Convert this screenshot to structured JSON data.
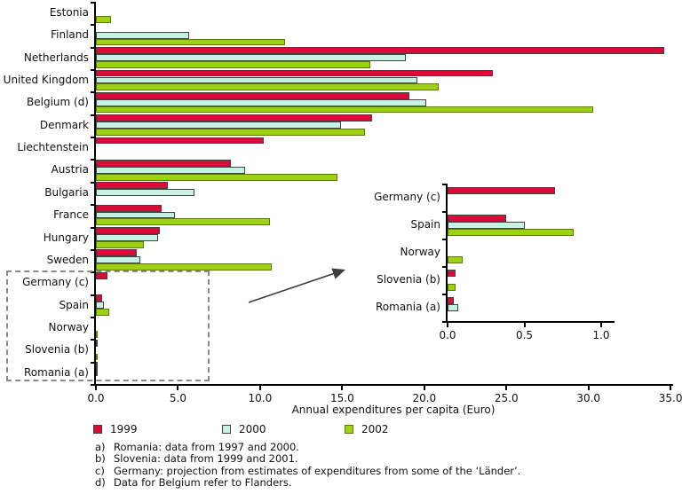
{
  "axis": {
    "title": "Annual expenditures per capita (Euro)"
  },
  "legend": {
    "items": [
      {
        "label": "1999",
        "color": "#DC0A38",
        "border": "#424242"
      },
      {
        "label": "2000",
        "color": "#C6F2E4",
        "border": "#424242"
      },
      {
        "label": "2002",
        "color": "#9CD211",
        "border": "#5e7a00"
      }
    ]
  },
  "chart_data": {
    "type": "bar",
    "orientation": "horizontal",
    "xlabel": "Annual expenditures per capita (Euro)",
    "grid": false,
    "legend_position": "bottom",
    "categories": [
      "Estonia",
      "Finland",
      "Netherlands",
      "United Kingdom",
      "Belgium (d)",
      "Denmark",
      "Liechtenstein",
      "Austria",
      "Bulgaria",
      "France",
      "Hungary",
      "Sweden",
      "Germany (c)",
      "Spain",
      "Norway",
      "Slovenia (b)",
      "Romania (a)"
    ],
    "x_ticks": [
      "0.0",
      "5.0",
      "10.0",
      "15.0",
      "20.0",
      "25.0",
      "30.0",
      "35.0"
    ],
    "xlim": [
      0,
      35
    ],
    "series": [
      {
        "name": "1999",
        "color": "#DC0A38",
        "border": "#424242",
        "values": [
          null,
          null,
          34.6,
          24.2,
          19.1,
          16.8,
          10.2,
          8.2,
          4.4,
          4.0,
          3.9,
          2.5,
          0.7,
          0.38,
          null,
          0.05,
          0.04
        ]
      },
      {
        "name": "2000",
        "color": "#C6F2E4",
        "border": "#424242",
        "values": [
          null,
          5.7,
          18.9,
          19.6,
          20.1,
          14.9,
          null,
          9.1,
          6.0,
          4.8,
          3.8,
          2.7,
          null,
          0.5,
          null,
          null,
          0.07
        ]
      },
      {
        "name": "2002",
        "color": "#9CD211",
        "border": "#5e7a00",
        "values": [
          0.9,
          11.5,
          16.7,
          20.9,
          30.3,
          16.4,
          null,
          14.7,
          null,
          10.6,
          2.9,
          10.7,
          null,
          0.82,
          0.1,
          0.05,
          null
        ]
      }
    ],
    "inset": {
      "description": "magnified view of the five lowest countries",
      "categories": [
        "Germany (c)",
        "Spain",
        "Norway",
        "Slovenia (b)",
        "Romania (a)"
      ],
      "x_ticks": [
        "0.0",
        "0.5",
        "1.0"
      ],
      "xlim": [
        0,
        1.05
      ],
      "series": [
        {
          "name": "1999",
          "color": "#DC0A38",
          "border": "#424242",
          "values": [
            0.7,
            0.38,
            null,
            0.05,
            0.04
          ]
        },
        {
          "name": "2000",
          "color": "#C6F2E4",
          "border": "#424242",
          "values": [
            null,
            0.5,
            null,
            null,
            0.07
          ]
        },
        {
          "name": "2002",
          "color": "#9CD211",
          "border": "#5e7a00",
          "values": [
            null,
            0.82,
            0.1,
            0.05,
            null
          ]
        }
      ]
    }
  },
  "footnotes": [
    {
      "marker": "a)",
      "text": "Romania: data from 1997 and 2000."
    },
    {
      "marker": "b)",
      "text": "Slovenia: data from 1999 and 2001."
    },
    {
      "marker": "c)",
      "text": "Germany: projection from estimates of expenditures from some of the ‘Länder’."
    },
    {
      "marker": "d)",
      "text": "Data for Belgium refer to Flanders."
    }
  ]
}
